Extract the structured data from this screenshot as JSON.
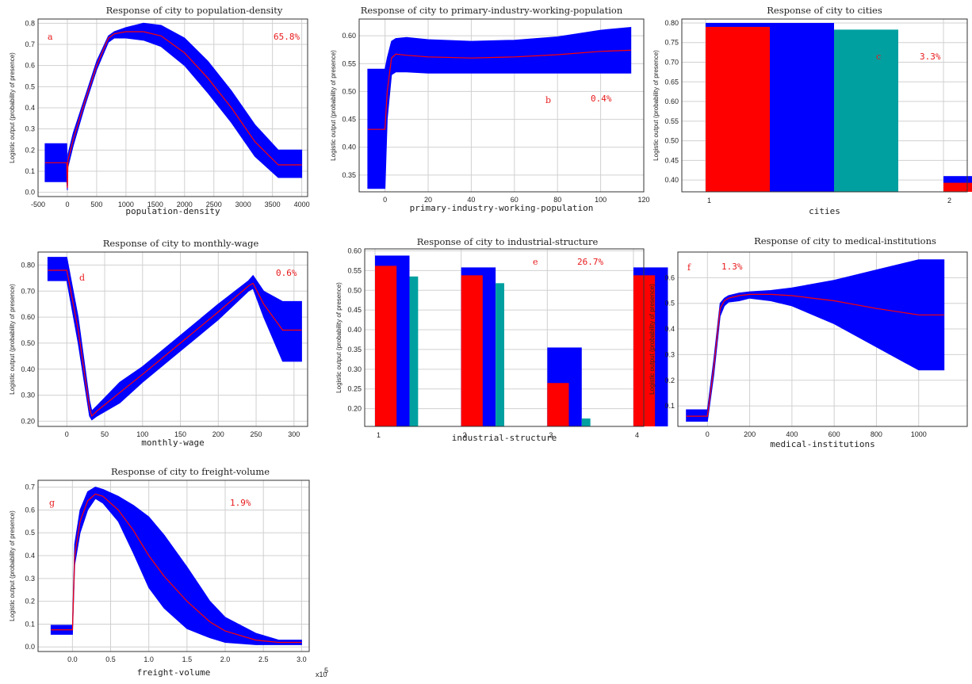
{
  "colors": {
    "band": "#0000ff",
    "mean": "#ff0000",
    "teal": "#00a0a0",
    "grid": "#d0d0d0"
  },
  "chart_data": [
    {
      "type": "area",
      "title": "Response of city to population-density",
      "xlabel": "population-density",
      "ylabel": "Logistic output (probability of presence)",
      "letter": "a",
      "pct": "65.8%",
      "xlim": [
        -500,
        4100
      ],
      "ylim": [
        -0.02,
        0.82
      ],
      "xticks": [
        -500,
        0,
        500,
        1000,
        1500,
        2000,
        2500,
        3000,
        3500,
        4000
      ],
      "yticks": [
        0,
        0.1,
        0.2,
        0.3,
        0.4,
        0.5,
        0.6,
        0.7,
        0.8
      ],
      "x": [
        -380,
        -10,
        0,
        10,
        100,
        300,
        500,
        700,
        800,
        1000,
        1300,
        1600,
        2000,
        2400,
        2800,
        3200,
        3600,
        3700,
        4000
      ],
      "mean": [
        0.14,
        0.14,
        0.02,
        0.15,
        0.25,
        0.43,
        0.6,
        0.73,
        0.75,
        0.76,
        0.76,
        0.74,
        0.66,
        0.54,
        0.4,
        0.24,
        0.13,
        0.13,
        0.13
      ],
      "upper": [
        0.23,
        0.23,
        0.04,
        0.18,
        0.28,
        0.45,
        0.62,
        0.74,
        0.76,
        0.78,
        0.8,
        0.79,
        0.73,
        0.62,
        0.48,
        0.32,
        0.2,
        0.2,
        0.2
      ],
      "lower": [
        0.05,
        0.05,
        0.01,
        0.12,
        0.22,
        0.41,
        0.58,
        0.71,
        0.73,
        0.73,
        0.72,
        0.69,
        0.6,
        0.47,
        0.33,
        0.17,
        0.07,
        0.07,
        0.07
      ]
    },
    {
      "type": "area",
      "title": "Response of city to primary-industry-working-population",
      "xlabel": "primary-industry-working-population",
      "ylabel": "Logistic output (probability of presence)",
      "letter": "b",
      "pct": "0.4%",
      "xlim": [
        -12,
        120
      ],
      "ylim": [
        0.32,
        0.63
      ],
      "xticks": [
        0,
        20,
        40,
        60,
        80,
        100,
        120
      ],
      "yticks": [
        0.35,
        0.4,
        0.45,
        0.5,
        0.55,
        0.6
      ],
      "x": [
        -8,
        0,
        1,
        3,
        5,
        10,
        20,
        40,
        60,
        80,
        100,
        114
      ],
      "mean": [
        0.432,
        0.432,
        0.5,
        0.56,
        0.567,
        0.565,
        0.562,
        0.56,
        0.562,
        0.566,
        0.572,
        0.574
      ],
      "upper": [
        0.54,
        0.54,
        0.56,
        0.59,
        0.595,
        0.597,
        0.593,
        0.59,
        0.592,
        0.598,
        0.61,
        0.615
      ],
      "lower": [
        0.326,
        0.326,
        0.45,
        0.53,
        0.535,
        0.535,
        0.533,
        0.533,
        0.533,
        0.533,
        0.533,
        0.533
      ]
    },
    {
      "type": "bar",
      "title": "Response of city to cities",
      "xlabel": "cities",
      "ylabel": "Logistic output (probability of presence)",
      "letter": "c",
      "pct": "3.3%",
      "xlim": [
        0.9,
        2.1
      ],
      "ylim": [
        0.37,
        0.81
      ],
      "categories": [
        "1",
        "2"
      ],
      "yticks": [
        0.4,
        0.45,
        0.5,
        0.55,
        0.6,
        0.65,
        0.7,
        0.75,
        0.8
      ],
      "series": [
        {
          "values": [
            0.79,
            0.393
          ]
        },
        {
          "values": [
            0.8,
            0.41
          ]
        },
        {
          "values": [
            0.783,
            null
          ]
        }
      ]
    },
    {
      "type": "area",
      "title": "Response of city to monthly-wage",
      "xlabel": "monthly-wage",
      "ylabel": "Logistic output (probability of presence)",
      "letter": "d",
      "pct": "0.6%",
      "xlim": [
        -38,
        318
      ],
      "ylim": [
        0.18,
        0.85
      ],
      "xticks": [
        0,
        50,
        100,
        150,
        200,
        250,
        300
      ],
      "yticks": [
        0.2,
        0.3,
        0.4,
        0.5,
        0.6,
        0.7,
        0.8
      ],
      "x": [
        -25,
        0,
        15,
        30,
        33,
        40,
        70,
        100,
        150,
        200,
        240,
        246,
        260,
        285,
        310
      ],
      "mean": [
        0.78,
        0.78,
        0.55,
        0.25,
        0.22,
        0.24,
        0.31,
        0.38,
        0.5,
        0.62,
        0.72,
        0.73,
        0.65,
        0.55,
        0.55
      ],
      "upper": [
        0.83,
        0.83,
        0.6,
        0.28,
        0.24,
        0.26,
        0.35,
        0.41,
        0.53,
        0.65,
        0.74,
        0.76,
        0.7,
        0.66,
        0.66
      ],
      "lower": [
        0.74,
        0.74,
        0.5,
        0.22,
        0.205,
        0.22,
        0.27,
        0.35,
        0.47,
        0.59,
        0.7,
        0.71,
        0.6,
        0.43,
        0.43
      ]
    },
    {
      "type": "bar",
      "title": "Response of city to industrial-structure",
      "xlabel": "industrial-structure",
      "ylabel": "Logistic output (probability of presence)",
      "letter": "e",
      "pct": "26.7%",
      "xlim": [
        0.88,
        4.12
      ],
      "ylim": [
        0.155,
        0.605
      ],
      "categories": [
        "1",
        "2",
        "3",
        "4"
      ],
      "yticks": [
        0.2,
        0.25,
        0.3,
        0.35,
        0.4,
        0.45,
        0.5,
        0.55,
        0.6
      ],
      "series": [
        {
          "values": [
            0.562,
            0.538,
            0.265,
            0.538
          ]
        },
        {
          "values": [
            0.588,
            0.558,
            0.355,
            0.558
          ]
        },
        {
          "values": [
            0.535,
            0.518,
            0.175,
            null
          ]
        }
      ]
    },
    {
      "type": "area",
      "title": "Response of city to medical-institutions",
      "xlabel": "medical-institutions",
      "ylabel": "Logistic output (probability of presence)",
      "letter": "f",
      "pct": "1.3%",
      "xlim": [
        -140,
        1230
      ],
      "ylim": [
        0.02,
        0.7
      ],
      "xticks": [
        0,
        200,
        400,
        600,
        800,
        1000
      ],
      "yticks": [
        0.1,
        0.2,
        0.3,
        0.4,
        0.5,
        0.6
      ],
      "x": [
        -100,
        0,
        30,
        60,
        80,
        100,
        150,
        200,
        300,
        400,
        600,
        800,
        1000,
        1120
      ],
      "mean": [
        0.06,
        0.06,
        0.25,
        0.48,
        0.51,
        0.52,
        0.53,
        0.535,
        0.535,
        0.53,
        0.51,
        0.48,
        0.455,
        0.455
      ],
      "upper": [
        0.085,
        0.085,
        0.28,
        0.5,
        0.52,
        0.53,
        0.54,
        0.545,
        0.55,
        0.56,
        0.59,
        0.63,
        0.67,
        0.67
      ],
      "lower": [
        0.04,
        0.04,
        0.22,
        0.45,
        0.49,
        0.505,
        0.51,
        0.52,
        0.51,
        0.49,
        0.42,
        0.33,
        0.24,
        0.24
      ]
    },
    {
      "type": "area",
      "title": "Response of city to freight-volume",
      "xlabel": "freight-volume",
      "ylabel": "Logistic output (probability of presence)",
      "letter": "g",
      "pct": "1.9%",
      "xexp": "x10",
      "xexpsup": "5",
      "xlim": [
        -0.45,
        3.1
      ],
      "ylim": [
        -0.02,
        0.73
      ],
      "xticks": [
        0,
        0.5,
        1,
        1.5,
        2,
        2.5,
        3
      ],
      "xtick_labels": [
        "0.0",
        "0.5",
        "1.0",
        "1.5",
        "2.0",
        "2.5",
        "3.0"
      ],
      "yticks": [
        0,
        0.1,
        0.2,
        0.3,
        0.4,
        0.5,
        0.6,
        0.7
      ],
      "x": [
        -0.28,
        0,
        0.03,
        0.1,
        0.2,
        0.3,
        0.4,
        0.6,
        0.8,
        1.0,
        1.2,
        1.5,
        1.8,
        2.0,
        2.4,
        2.7,
        3.0
      ],
      "mean": [
        0.075,
        0.075,
        0.4,
        0.55,
        0.64,
        0.67,
        0.66,
        0.6,
        0.51,
        0.4,
        0.31,
        0.2,
        0.11,
        0.07,
        0.03,
        0.02,
        0.02
      ],
      "upper": [
        0.095,
        0.095,
        0.45,
        0.6,
        0.68,
        0.7,
        0.69,
        0.66,
        0.62,
        0.57,
        0.49,
        0.35,
        0.2,
        0.13,
        0.06,
        0.03,
        0.03
      ],
      "lower": [
        0.055,
        0.055,
        0.36,
        0.5,
        0.6,
        0.65,
        0.63,
        0.55,
        0.41,
        0.26,
        0.17,
        0.08,
        0.04,
        0.02,
        0.01,
        0.01,
        0.01
      ]
    }
  ]
}
